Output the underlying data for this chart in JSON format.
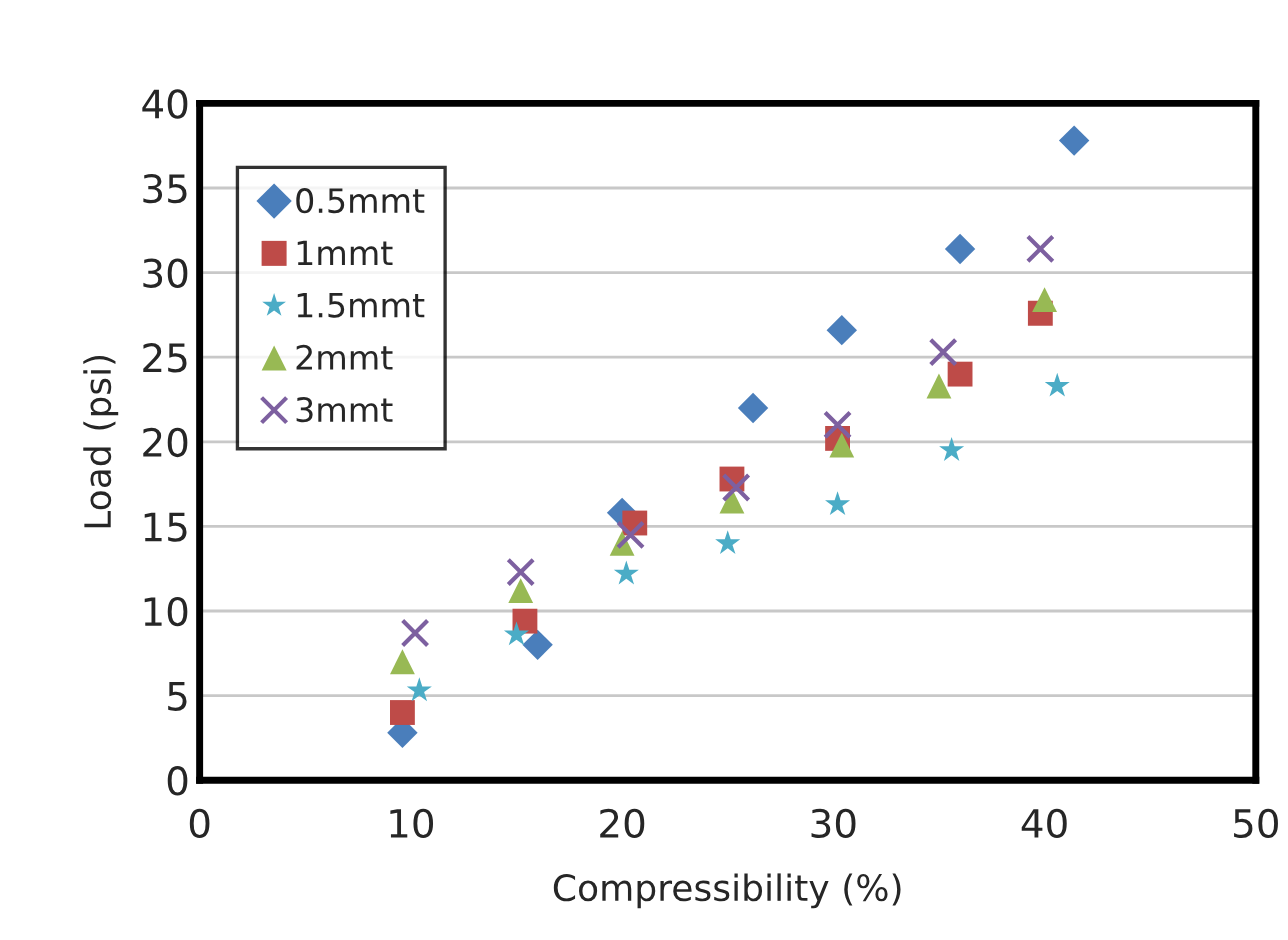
{
  "chart_data": {
    "type": "scatter",
    "xlabel": "Compressibility (%)",
    "ylabel": "Load (psi)",
    "xlim": [
      0,
      50
    ],
    "xticks": [
      0,
      10,
      20,
      30,
      40,
      50
    ],
    "ylim": [
      0,
      40
    ],
    "yticks": [
      0,
      5,
      10,
      15,
      20,
      25,
      30,
      35,
      40
    ],
    "grid": "y",
    "legend": "top left",
    "series": [
      {
        "name": "0.5mmt",
        "color": "#4a7ebb",
        "marker": "diamond",
        "x": [
          9.6,
          16,
          20,
          26.2,
          30.4,
          36,
          41.4
        ],
        "values": [
          2.8,
          8,
          15.8,
          22,
          26.6,
          31.4,
          37.8
        ]
      },
      {
        "name": "1mmt",
        "color": "#be4b48",
        "marker": "square",
        "x": [
          9.6,
          15.4,
          20.6,
          25.2,
          30.2,
          36,
          39.8
        ],
        "values": [
          4,
          9.4,
          15.2,
          17.8,
          20.2,
          24,
          27.6
        ]
      },
      {
        "name": "1.5mmt",
        "color": "#4bacc6",
        "marker": "star",
        "x": [
          10.4,
          15,
          20.2,
          25,
          30.2,
          35.6,
          40.6
        ],
        "values": [
          5.3,
          8.6,
          12.2,
          14,
          16.3,
          19.5,
          23.3
        ]
      },
      {
        "name": "2mmt",
        "color": "#98b954",
        "marker": "triangle",
        "x": [
          9.6,
          15.2,
          20,
          25.2,
          30.4,
          35,
          40
        ],
        "values": [
          7,
          11.2,
          14,
          16.5,
          19.8,
          23.3,
          28.4
        ]
      },
      {
        "name": "3mmt",
        "color": "#7d60a0",
        "marker": "cross",
        "x": [
          10.2,
          15.2,
          20.4,
          25.4,
          30.2,
          35.2,
          39.8
        ],
        "values": [
          8.7,
          12.3,
          14.5,
          17.3,
          21,
          25.3,
          31.4
        ]
      }
    ]
  }
}
